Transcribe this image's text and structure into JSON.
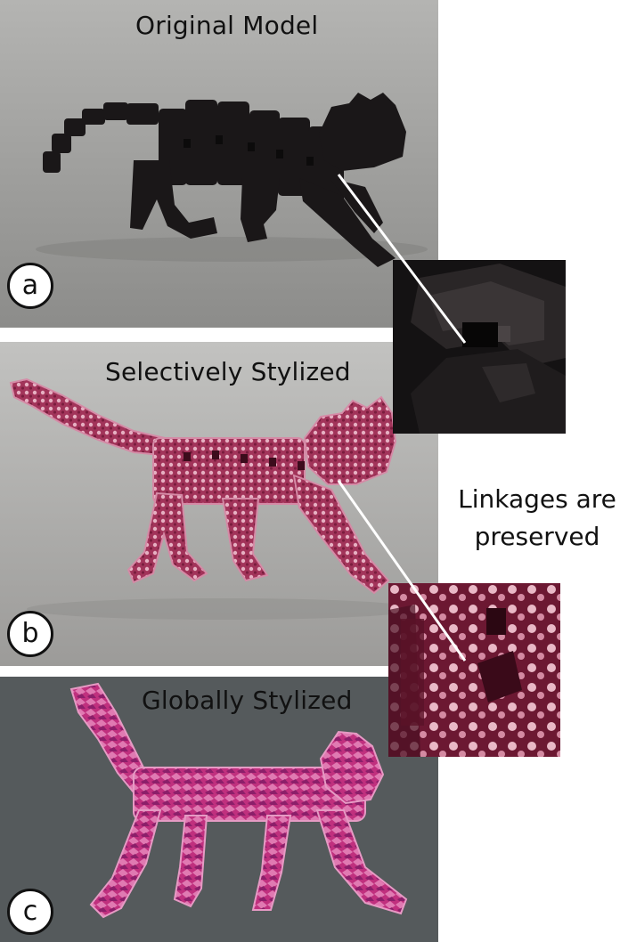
{
  "panels": [
    {
      "label": "a",
      "caption": "Original Model"
    },
    {
      "label": "b",
      "caption": "Selectively  Stylized"
    },
    {
      "label": "c",
      "caption": "Globally Stylized"
    }
  ],
  "annotation": {
    "line1": "Linkages are",
    "line2": "preserved"
  },
  "colors": {
    "original_model": "#1a1718",
    "selective_model": "#a2345a",
    "global_model": "#c0307e",
    "background_a": "#a2a2a0",
    "background_b": "#aeadab",
    "background_c": "#555a5c"
  }
}
